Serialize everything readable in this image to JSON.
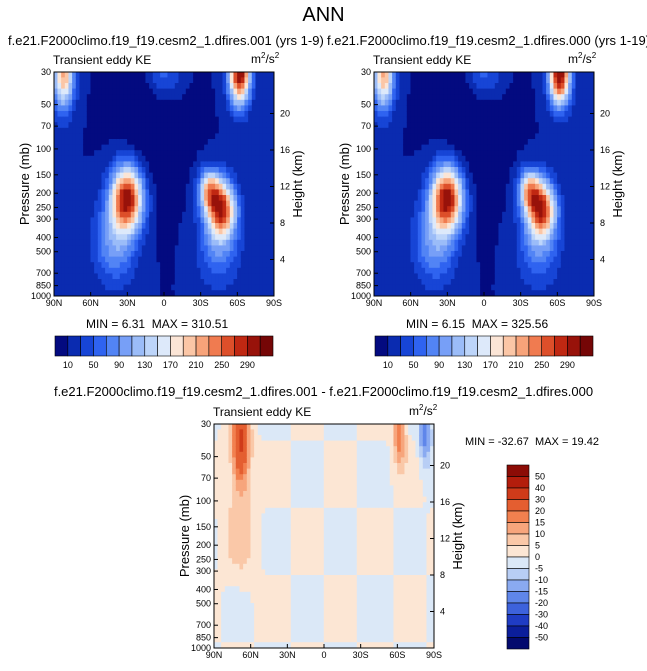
{
  "title": "ANN",
  "panels": [
    {
      "id": "p1",
      "title": "f.e21.F2000climo.f19_f19.cesm2_1.dfires.001 (yrs 1-9)",
      "left_title": "Transient eddy KE",
      "units_base": "m",
      "units_exp": "2",
      "units_tail": "/s",
      "units_exp2": "2",
      "min_label": "MIN =",
      "min_value": "6.31",
      "max_label": "MAX =",
      "max_value": "310.51"
    },
    {
      "id": "p2",
      "title": "f.e21.F2000climo.f19_f19.cesm2_1.dfires.000 (yrs 1-19)",
      "left_title": "Transient eddy KE",
      "units_base": "m",
      "units_exp": "2",
      "units_tail": "/s",
      "units_exp2": "2",
      "min_label": "MIN =",
      "min_value": "6.15",
      "max_label": "MAX =",
      "max_value": "325.56"
    },
    {
      "id": "p3",
      "title": "f.e21.F2000climo.f19_f19.cesm2_1.dfires.001 - f.e21.F2000climo.f19_f19.cesm2_1.dfires.000",
      "left_title": "Transient eddy KE",
      "units_base": "m",
      "units_exp": "2",
      "units_tail": "/s",
      "units_exp2": "2",
      "min_label": "MIN =",
      "min_value": "-32.67",
      "max_label": "MAX =",
      "max_value": "19.42"
    }
  ],
  "axes": {
    "ylabel": "Pressure (mb)",
    "ylabel_right": "Height (km)",
    "pressure_ticks": [
      "30",
      "50",
      "70",
      "100",
      "150",
      "200",
      "250",
      "300",
      "400",
      "500",
      "700",
      "850",
      "1000"
    ],
    "height_ticks": [
      "4",
      "8",
      "12",
      "16",
      "20"
    ],
    "lat_ticks": [
      "90N",
      "60N",
      "30N",
      "0",
      "30S",
      "60S",
      "90S"
    ]
  },
  "colorbars": {
    "abs": {
      "labels": [
        "10",
        "50",
        "90",
        "130",
        "170",
        "210",
        "250",
        "290"
      ],
      "colors": [
        "#030a80",
        "#0a2bb0",
        "#1745d6",
        "#2f63f0",
        "#5284f5",
        "#779ff7",
        "#9bbcf8",
        "#bdd5fa",
        "#dde9fa",
        "#fbe5d6",
        "#fbc6a6",
        "#f7a37a",
        "#f07b50",
        "#dd4f2a",
        "#c02812",
        "#98120a",
        "#750606"
      ]
    },
    "diff": {
      "labels": [
        "50",
        "40",
        "30",
        "20",
        "15",
        "10",
        "5",
        "0",
        "-5",
        "-10",
        "-15",
        "-20",
        "-30",
        "-40",
        "-50"
      ],
      "colors": [
        "#8c0c06",
        "#b31d0c",
        "#cf3b1a",
        "#e45e30",
        "#f2804f",
        "#f7a57c",
        "#fac8a8",
        "#fce6d4",
        "#dbe8f7",
        "#b8cef5",
        "#8aaaf1",
        "#5f86ea",
        "#3d62dc",
        "#1f3cc4",
        "#0b1e9b",
        "#030a6e"
      ]
    }
  },
  "chart_data": [
    {
      "type": "heatmap",
      "title": "f.e21.F2000climo.f19_f19.cesm2_1.dfires.001 (yrs 1-9)",
      "subtitle": "Transient eddy KE",
      "units": "m2/s2",
      "xlabel": "Latitude",
      "ylabel": "Pressure (mb)",
      "ylabel_right": "Height (km)",
      "xlim": [
        90,
        -90
      ],
      "ylim": [
        1000,
        30
      ],
      "levels": [
        10,
        30,
        50,
        70,
        90,
        110,
        130,
        150,
        170,
        190,
        210,
        230,
        250,
        270,
        290
      ],
      "min": 6.31,
      "max": 310.51,
      "features": [
        {
          "name": "NH jet maximum",
          "lat": 30,
          "p": 215,
          "value": 300
        },
        {
          "name": "SH jet maximum",
          "lat": -48,
          "p": 260,
          "value": 260
        },
        {
          "name": "SH upper maximum",
          "lat": -62,
          "p": 30,
          "value": 310
        },
        {
          "name": "NH upper maximum",
          "lat": 83,
          "p": 30,
          "value": 200
        }
      ]
    },
    {
      "type": "heatmap",
      "title": "f.e21.F2000climo.f19_f19.cesm2_1.dfires.000 (yrs 1-19)",
      "subtitle": "Transient eddy KE",
      "units": "m2/s2",
      "xlabel": "Latitude",
      "ylabel": "Pressure (mb)",
      "ylabel_right": "Height (km)",
      "xlim": [
        90,
        -90
      ],
      "ylim": [
        1000,
        30
      ],
      "levels": [
        10,
        30,
        50,
        70,
        90,
        110,
        130,
        150,
        170,
        190,
        210,
        230,
        250,
        270,
        290
      ],
      "min": 6.15,
      "max": 325.56,
      "features": [
        {
          "name": "NH jet maximum",
          "lat": 30,
          "p": 215,
          "value": 300
        },
        {
          "name": "SH jet maximum",
          "lat": -48,
          "p": 260,
          "value": 255
        },
        {
          "name": "SH upper maximum",
          "lat": -62,
          "p": 30,
          "value": 325
        },
        {
          "name": "NH upper maximum",
          "lat": 83,
          "p": 30,
          "value": 200
        }
      ]
    },
    {
      "type": "heatmap",
      "title": "f.e21.F2000climo.f19_f19.cesm2_1.dfires.001 - f.e21.F2000climo.f19_f19.cesm2_1.dfires.000",
      "subtitle": "Transient eddy KE",
      "units": "m2/s2",
      "xlabel": "Latitude",
      "ylabel": "Pressure (mb)",
      "ylabel_right": "Height (km)",
      "xlim": [
        90,
        -90
      ],
      "ylim": [
        1000,
        30
      ],
      "levels": [
        -50,
        -40,
        -30,
        -20,
        -15,
        -10,
        -5,
        0,
        5,
        10,
        15,
        20,
        30,
        40,
        50
      ],
      "min": -32.67,
      "max": 19.42,
      "features": [
        {
          "name": "NH upper negative",
          "lat": 68,
          "p": 40,
          "value": -30
        },
        {
          "name": "SH upper negative",
          "lat": -62,
          "p": 35,
          "value": -20
        },
        {
          "name": "SH upper positive",
          "lat": -83,
          "p": 35,
          "value": 19
        }
      ]
    }
  ]
}
